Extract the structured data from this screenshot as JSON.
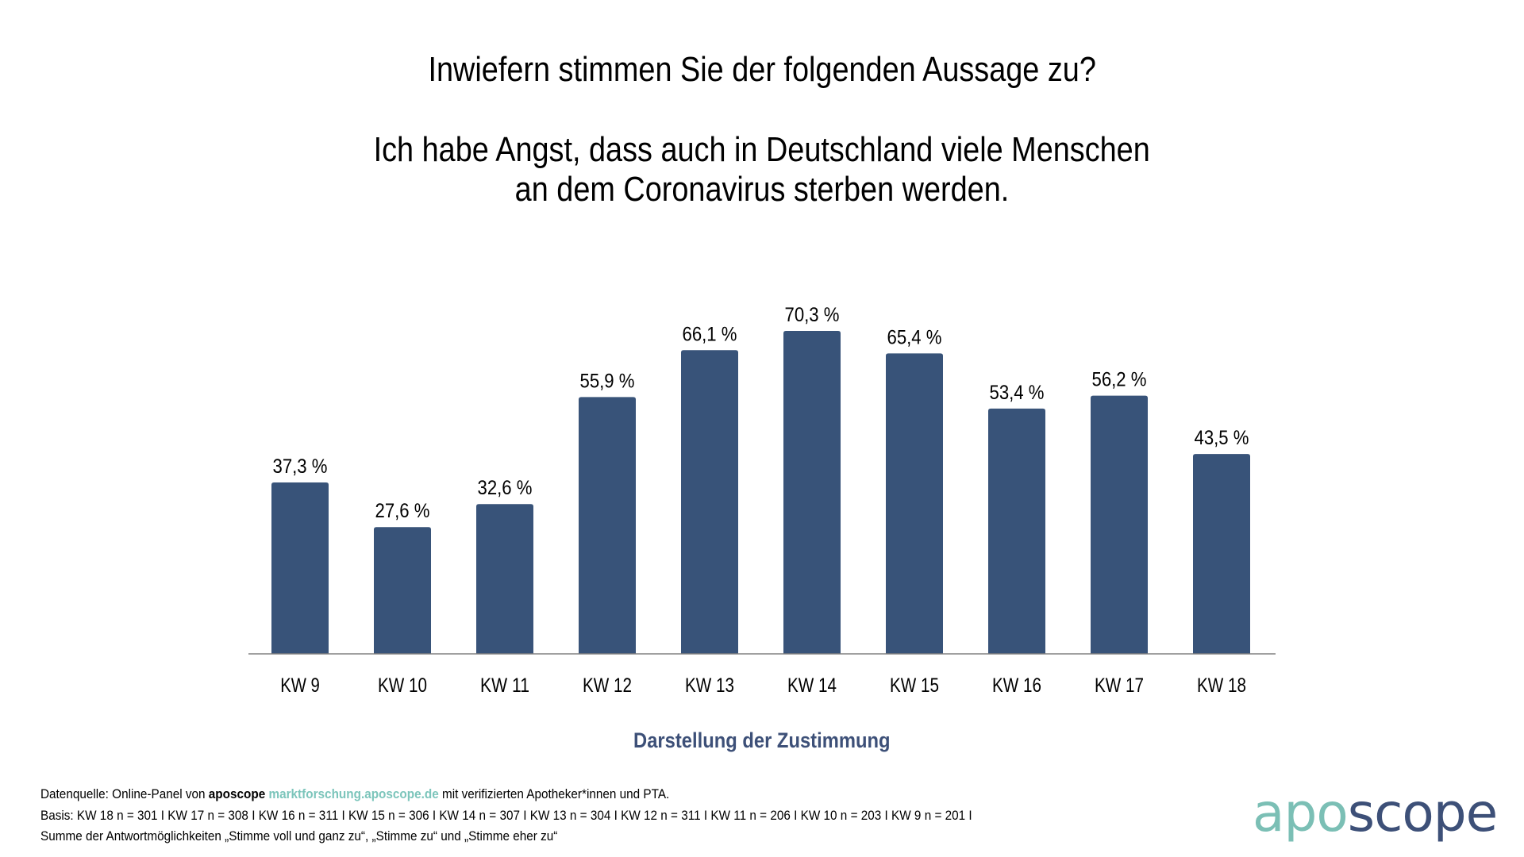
{
  "title": {
    "line1": "Inwiefern stimmen Sie der folgenden Aussage zu?",
    "line2": "Ich habe Angst, dass auch in Deutschland viele Menschen",
    "line3": "an dem Coronavirus sterben werden."
  },
  "chart_data": {
    "type": "bar",
    "title": "Inwiefern stimmen Sie der folgenden Aussage zu? Ich habe Angst, dass auch in Deutschland viele Menschen an dem Coronavirus sterben werden.",
    "categories": [
      "KW 9",
      "KW 10",
      "KW 11",
      "KW 12",
      "KW 13",
      "KW 14",
      "KW 15",
      "KW 16",
      "KW 17",
      "KW 18"
    ],
    "values": [
      37.3,
      27.6,
      32.6,
      55.9,
      66.1,
      70.3,
      65.4,
      53.4,
      56.2,
      43.5
    ],
    "value_labels": [
      "37,3 %",
      "27,6 %",
      "32,6 %",
      "55,9 %",
      "66,1 %",
      "70,3 %",
      "65,4 %",
      "53,4 %",
      "56,2 %",
      "43,5 %"
    ],
    "xlabel": "Darstellung der Zustimmung",
    "ylabel": "",
    "ylim": [
      0,
      100
    ],
    "unit": "%",
    "grid": false,
    "legend": "none",
    "bar_color": "#385379",
    "axis_color": "#808080"
  },
  "subtitle": "Darstellung der Zustimmung",
  "footnote": {
    "line1_prefix": "Datenquelle: Online-Panel von ",
    "line1_brand": "aposcope",
    "line1_link": "marktforschung.aposcope.de",
    "line1_suffix": " mit verifizierten Apotheker*innen und PTA.",
    "line2": "Basis: KW 18 n = 301 I KW 17 n = 308 I KW 16 n = 311 I KW 15 n = 306 I KW 14 n = 307 I KW 13 n = 304 I KW 12 n = 311 I KW 11 n = 206 I KW 10 n = 203 I KW 9 n = 201 I",
    "line3": "Summe der Antwortmöglichkeiten „Stimme voll und ganz zu“, „Stimme zu“ und „Stimme eher zu“"
  },
  "logo": {
    "part1": "apo",
    "part2": "scope",
    "color1": "#7bbfb5",
    "color2": "#3d5078"
  }
}
